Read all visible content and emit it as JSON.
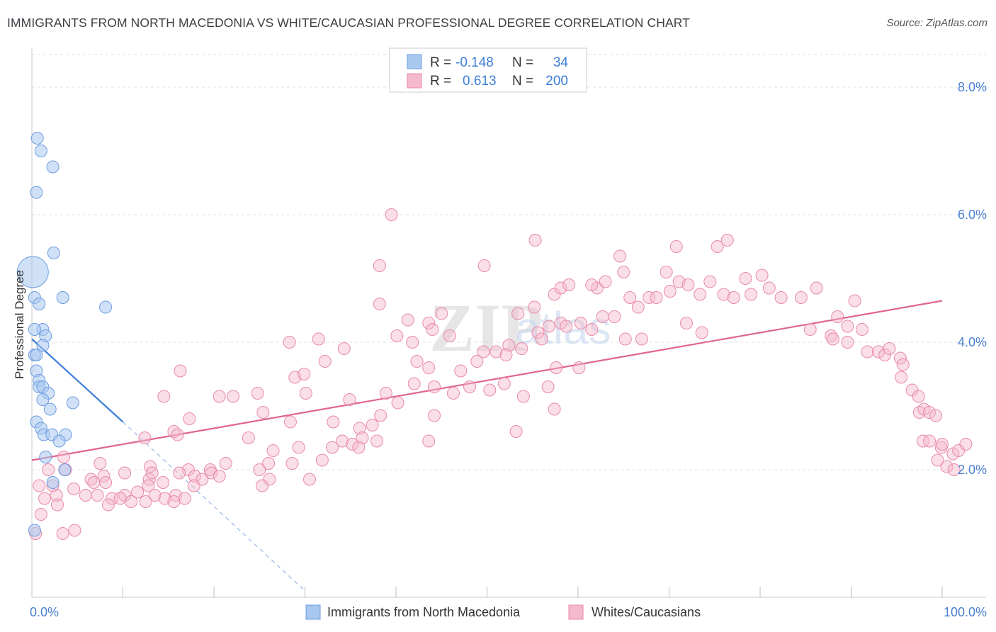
{
  "header": {
    "title": "IMMIGRANTS FROM NORTH MACEDONIA VS WHITE/CAUCASIAN PROFESSIONAL DEGREE CORRELATION CHART",
    "source": "Source: ZipAtlas.com"
  },
  "watermark": "ZIPatlas",
  "colors": {
    "blue_fill": "#a9c8f0",
    "blue_stroke": "#6d9de0",
    "blue_line": "#3b7dd8",
    "pink_fill": "#f5b9cc",
    "pink_stroke": "#e98aa8",
    "pink_line": "#e0648e",
    "tick_text": "#4a7fd0",
    "grid": "#e2e2e2"
  },
  "legend": {
    "rows": [
      {
        "r_label": "R =",
        "r_value": "-0.148",
        "n_label": "N =",
        "n_value": "34"
      },
      {
        "r_label": "R =",
        "r_value": "0.613",
        "n_label": "N =",
        "n_value": "200"
      }
    ]
  },
  "bottom_legend": {
    "series1": "Immigrants from North Macedonia",
    "series2": "Whites/Caucasians"
  },
  "chart_data": {
    "type": "scatter",
    "title": "IMMIGRANTS FROM NORTH MACEDONIA VS WHITE/CAUCASIAN PROFESSIONAL DEGREE CORRELATION CHART",
    "xlabel": "",
    "ylabel": "Professional Degree",
    "xlim": [
      0,
      100
    ],
    "ylim": [
      0,
      8.7
    ],
    "x_tick_labels": [
      "0.0%",
      "100.0%"
    ],
    "y_ticks": [
      2,
      4,
      6,
      8
    ],
    "y_tick_labels": [
      "2.0%",
      "4.0%",
      "6.0%",
      "8.0%"
    ],
    "series": [
      {
        "name": "Immigrants from North Macedonia",
        "color": "#a9c8f0",
        "R": -0.148,
        "N": 34,
        "trend": {
          "x0": 0,
          "y0": 4.05,
          "x1": 10,
          "y1": 2.75,
          "dashed_to_x": 30,
          "dashed_to_y": 0.1
        },
        "points": [
          [
            0.6,
            7.2,
            1
          ],
          [
            1.0,
            7.0,
            1
          ],
          [
            2.3,
            6.75,
            1
          ],
          [
            0.5,
            6.35,
            1
          ],
          [
            2.4,
            5.4,
            1
          ],
          [
            0.1,
            5.1,
            3
          ],
          [
            3.4,
            4.7,
            1
          ],
          [
            0.3,
            4.7,
            1
          ],
          [
            0.8,
            4.6,
            1
          ],
          [
            8.1,
            4.55,
            1
          ],
          [
            1.2,
            4.2,
            1
          ],
          [
            1.5,
            4.1,
            1
          ],
          [
            0.3,
            4.2,
            1
          ],
          [
            1.2,
            3.95,
            1
          ],
          [
            0.3,
            3.8,
            1
          ],
          [
            0.5,
            3.8,
            1
          ],
          [
            0.5,
            3.55,
            1
          ],
          [
            0.8,
            3.4,
            1
          ],
          [
            0.8,
            3.3,
            1
          ],
          [
            1.2,
            3.3,
            1
          ],
          [
            1.8,
            3.2,
            1
          ],
          [
            1.2,
            3.1,
            1
          ],
          [
            4.5,
            3.05,
            1
          ],
          [
            2.0,
            2.95,
            1
          ],
          [
            0.5,
            2.75,
            1
          ],
          [
            1.0,
            2.65,
            1
          ],
          [
            1.3,
            2.55,
            1
          ],
          [
            2.2,
            2.55,
            1
          ],
          [
            3.7,
            2.55,
            1
          ],
          [
            3.0,
            2.45,
            1
          ],
          [
            1.5,
            2.2,
            1
          ],
          [
            3.6,
            2.0,
            1
          ],
          [
            2.3,
            1.8,
            1
          ],
          [
            0.3,
            1.05,
            1
          ]
        ]
      },
      {
        "name": "Whites/Caucasians",
        "color": "#f5b9cc",
        "R": 0.613,
        "N": 200,
        "trend": {
          "x0": 0,
          "y0": 2.15,
          "x1": 100,
          "y1": 4.65
        },
        "points": [
          [
            39.5,
            6.0
          ],
          [
            55.3,
            5.6
          ],
          [
            38.2,
            5.2
          ],
          [
            49.7,
            5.2
          ],
          [
            64.6,
            5.35
          ],
          [
            65.0,
            5.1
          ],
          [
            70.8,
            5.5
          ],
          [
            69.7,
            5.1
          ],
          [
            75.3,
            5.5
          ],
          [
            76.4,
            5.6
          ],
          [
            71.1,
            4.95
          ],
          [
            74.5,
            4.95
          ],
          [
            78.4,
            5.0
          ],
          [
            80.2,
            5.05
          ],
          [
            81.0,
            4.85
          ],
          [
            62.1,
            4.85
          ],
          [
            57.4,
            4.75
          ],
          [
            58.1,
            4.85
          ],
          [
            59.0,
            4.9
          ],
          [
            61.5,
            4.9
          ],
          [
            63.0,
            4.95
          ],
          [
            65.7,
            4.7
          ],
          [
            67.8,
            4.7
          ],
          [
            68.6,
            4.7
          ],
          [
            70.1,
            4.8
          ],
          [
            72.1,
            4.9
          ],
          [
            73.4,
            4.75
          ],
          [
            76.0,
            4.75
          ],
          [
            77.1,
            4.7
          ],
          [
            79.0,
            4.75
          ],
          [
            82.3,
            4.7
          ],
          [
            84.5,
            4.7
          ],
          [
            86.2,
            4.85
          ],
          [
            90.4,
            4.65
          ],
          [
            38.2,
            4.6
          ],
          [
            41.3,
            4.35
          ],
          [
            43.6,
            4.3
          ],
          [
            45.0,
            4.45
          ],
          [
            53.4,
            4.45
          ],
          [
            55.2,
            4.55
          ],
          [
            56.8,
            4.25
          ],
          [
            58.1,
            4.3
          ],
          [
            60.3,
            4.3
          ],
          [
            62.7,
            4.4
          ],
          [
            64.0,
            4.4
          ],
          [
            66.6,
            4.55
          ],
          [
            71.9,
            4.3
          ],
          [
            88.5,
            4.4
          ],
          [
            89.6,
            4.25
          ],
          [
            91.2,
            4.2
          ],
          [
            87.8,
            4.1
          ],
          [
            85.5,
            4.2
          ],
          [
            28.3,
            4.0
          ],
          [
            31.5,
            4.05
          ],
          [
            34.3,
            3.9
          ],
          [
            40.1,
            4.1
          ],
          [
            41.8,
            4.0
          ],
          [
            44.0,
            4.2
          ],
          [
            45.9,
            4.1
          ],
          [
            52.4,
            3.95
          ],
          [
            53.8,
            3.9
          ],
          [
            55.6,
            4.15
          ],
          [
            56.0,
            4.05
          ],
          [
            58.7,
            4.25
          ],
          [
            61.5,
            4.2
          ],
          [
            65.2,
            4.05
          ],
          [
            67.0,
            4.05
          ],
          [
            73.6,
            4.15
          ],
          [
            88.0,
            4.05
          ],
          [
            89.6,
            4.0
          ],
          [
            16.3,
            3.55
          ],
          [
            28.9,
            3.45
          ],
          [
            29.9,
            3.5
          ],
          [
            32.2,
            3.7
          ],
          [
            42.3,
            3.7
          ],
          [
            43.6,
            3.6
          ],
          [
            47.1,
            3.55
          ],
          [
            48.9,
            3.7
          ],
          [
            49.6,
            3.85
          ],
          [
            51.0,
            3.85
          ],
          [
            52.1,
            3.8
          ],
          [
            57.6,
            3.6
          ],
          [
            60.1,
            3.6
          ],
          [
            91.8,
            3.85
          ],
          [
            93.0,
            3.85
          ],
          [
            93.7,
            3.8
          ],
          [
            94.2,
            3.9
          ],
          [
            95.4,
            3.75
          ],
          [
            95.7,
            3.65
          ],
          [
            14.5,
            3.15
          ],
          [
            20.6,
            3.15
          ],
          [
            22.1,
            3.15
          ],
          [
            24.8,
            3.2
          ],
          [
            30.1,
            3.2
          ],
          [
            34.9,
            3.1
          ],
          [
            38.9,
            3.2
          ],
          [
            40.2,
            3.05
          ],
          [
            42.0,
            3.35
          ],
          [
            44.2,
            3.3
          ],
          [
            46.3,
            3.2
          ],
          [
            48.1,
            3.3
          ],
          [
            50.3,
            3.25
          ],
          [
            51.9,
            3.35
          ],
          [
            54.0,
            3.15
          ],
          [
            56.7,
            3.3
          ],
          [
            57.4,
            2.95
          ],
          [
            95.5,
            3.45
          ],
          [
            96.7,
            3.25
          ],
          [
            97.4,
            3.15
          ],
          [
            17.3,
            2.8
          ],
          [
            25.4,
            2.9
          ],
          [
            28.4,
            2.75
          ],
          [
            33.1,
            2.75
          ],
          [
            36.0,
            2.65
          ],
          [
            37.4,
            2.7
          ],
          [
            38.3,
            2.85
          ],
          [
            44.2,
            2.85
          ],
          [
            53.2,
            2.6
          ],
          [
            36.3,
            2.5
          ],
          [
            37.9,
            2.45
          ],
          [
            97.5,
            2.9
          ],
          [
            98.0,
            2.95
          ],
          [
            98.6,
            2.9
          ],
          [
            99.3,
            2.85
          ],
          [
            12.4,
            2.5
          ],
          [
            15.6,
            2.6
          ],
          [
            16.0,
            2.55
          ],
          [
            23.8,
            2.5
          ],
          [
            26.5,
            2.3
          ],
          [
            29.3,
            2.35
          ],
          [
            33.0,
            2.35
          ],
          [
            34.1,
            2.45
          ],
          [
            35.2,
            2.4
          ],
          [
            35.9,
            2.35
          ],
          [
            43.6,
            2.45
          ],
          [
            97.9,
            2.45
          ],
          [
            98.6,
            2.45
          ],
          [
            99.9,
            2.35
          ],
          [
            100.0,
            2.4
          ],
          [
            101.2,
            2.25
          ],
          [
            101.8,
            2.3
          ],
          [
            102.6,
            2.4
          ],
          [
            99.5,
            2.15
          ],
          [
            3.5,
            2.2
          ],
          [
            7.5,
            2.1
          ],
          [
            13.0,
            2.05
          ],
          [
            17.2,
            2.0
          ],
          [
            19.6,
            2.0
          ],
          [
            21.3,
            2.1
          ],
          [
            25.0,
            2.0
          ],
          [
            26.0,
            2.1
          ],
          [
            28.6,
            2.1
          ],
          [
            31.9,
            2.15
          ],
          [
            100.5,
            2.05
          ],
          [
            101.3,
            2.0
          ],
          [
            1.8,
            2.0
          ],
          [
            3.7,
            2.0
          ],
          [
            7.9,
            1.9
          ],
          [
            10.2,
            1.95
          ],
          [
            12.9,
            1.85
          ],
          [
            13.2,
            1.95
          ],
          [
            16.2,
            1.95
          ],
          [
            17.9,
            1.9
          ],
          [
            19.7,
            1.95
          ],
          [
            20.6,
            1.9
          ],
          [
            26.1,
            1.85
          ],
          [
            30.5,
            1.85
          ],
          [
            0.8,
            1.75
          ],
          [
            2.3,
            1.75
          ],
          [
            6.5,
            1.85
          ],
          [
            6.8,
            1.8
          ],
          [
            8.1,
            1.8
          ],
          [
            12.8,
            1.75
          ],
          [
            14.4,
            1.8
          ],
          [
            17.8,
            1.75
          ],
          [
            18.7,
            1.85
          ],
          [
            25.3,
            1.75
          ],
          [
            2.7,
            1.6
          ],
          [
            4.6,
            1.7
          ],
          [
            5.9,
            1.6
          ],
          [
            7.2,
            1.6
          ],
          [
            8.8,
            1.55
          ],
          [
            10.2,
            1.6
          ],
          [
            11.6,
            1.65
          ],
          [
            13.5,
            1.6
          ],
          [
            15.8,
            1.6
          ],
          [
            16.8,
            1.55
          ],
          [
            1.4,
            1.55
          ],
          [
            2.8,
            1.45
          ],
          [
            8.4,
            1.45
          ],
          [
            9.7,
            1.55
          ],
          [
            10.9,
            1.5
          ],
          [
            12.5,
            1.5
          ],
          [
            14.6,
            1.55
          ],
          [
            15.6,
            1.5
          ],
          [
            1.0,
            1.3
          ],
          [
            0.4,
            1.0
          ],
          [
            3.4,
            1.0
          ],
          [
            4.7,
            1.05
          ]
        ]
      }
    ]
  }
}
